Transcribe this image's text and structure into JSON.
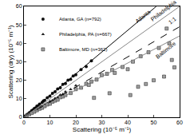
{
  "chart_data": {
    "type": "scatter",
    "x_label": "Scattering (10⁻⁵ m⁻¹)",
    "y_label": "Scattering (dry) (10⁻⁵ m⁻¹)",
    "xlim": [
      0,
      60
    ],
    "ylim": [
      0,
      60
    ],
    "xticks": [
      0,
      10,
      20,
      30,
      40,
      50,
      60
    ],
    "yticks": [
      0,
      10,
      20,
      30,
      40,
      50,
      60
    ],
    "grid": false,
    "legend": "top-left",
    "series": [
      {
        "name": "Atlanta, GA (n=792)",
        "type": "scatter",
        "marker": "circle",
        "color": "#111111",
        "x": [
          0.5,
          1,
          1.5,
          2,
          2.5,
          3,
          3.5,
          4,
          4.5,
          5,
          5.5,
          6,
          7,
          7.5,
          8,
          9,
          10,
          11,
          12,
          13,
          14,
          15,
          16,
          17,
          18,
          19,
          20,
          22,
          24,
          26
        ],
        "values": [
          0.6,
          1.2,
          1.7,
          2.4,
          2.8,
          3.6,
          4.0,
          4.8,
          5.1,
          6.0,
          6.2,
          7.1,
          8.0,
          8.9,
          9.2,
          10.6,
          11.4,
          12.9,
          13.8,
          15.3,
          16.0,
          17.8,
          18.2,
          20.1,
          20.5,
          22.3,
          23.0,
          25.8,
          27.4,
          30.5
        ]
      },
      {
        "name": "Philadelphia, PA (n=667)",
        "type": "scatter",
        "marker": "triangle",
        "color": "#222222",
        "x": [
          0.5,
          1,
          1.5,
          2,
          3,
          3.5,
          4,
          5,
          6,
          6.5,
          7,
          8,
          9,
          10,
          11,
          12,
          13,
          14,
          15,
          16,
          18,
          20
        ],
        "values": [
          0.4,
          0.9,
          1.3,
          1.6,
          2.6,
          2.9,
          3.4,
          4.3,
          5.0,
          5.6,
          5.9,
          6.8,
          7.6,
          8.6,
          9.2,
          10.3,
          10.8,
          12.1,
          12.5,
          13.8,
          15.1,
          17.2
        ]
      },
      {
        "name": "Baltimore, MD (n=362)",
        "type": "scatter",
        "marker": "square",
        "color": "#a0a0a0",
        "x": [
          1,
          2,
          3,
          4,
          5,
          6,
          7,
          8,
          9,
          10,
          11,
          12,
          13,
          14,
          15,
          16,
          18,
          20,
          22,
          24,
          25,
          26,
          28,
          30,
          32,
          34,
          35,
          38,
          40,
          42,
          44,
          45,
          48,
          50,
          52,
          55,
          56,
          58,
          27,
          33,
          41,
          47,
          54,
          57
        ],
        "values": [
          0.8,
          1.6,
          2.3,
          3.0,
          3.8,
          4.6,
          5.1,
          6.0,
          6.9,
          7.3,
          8.4,
          9.0,
          9.5,
          10.8,
          11.2,
          12.0,
          13.1,
          15.2,
          16.0,
          18.1,
          17.5,
          19.3,
          20.4,
          22.8,
          23.5,
          25.6,
          24.0,
          27.2,
          26.0,
          30.1,
          16.5,
          33.0,
          35.2,
          20.0,
          37.5,
          48.0,
          40.0,
          27.0,
          10.5,
          13.0,
          12.0,
          18.0,
          22.0,
          31.0
        ]
      },
      {
        "name": "Atlanta",
        "type": "line",
        "line_style": "solid",
        "color": "#000000",
        "x": [
          0,
          51
        ],
        "values": [
          0,
          60
        ]
      },
      {
        "name": "1:1",
        "type": "line",
        "line_style": "solid",
        "color": "#888888",
        "x": [
          0,
          60
        ],
        "values": [
          0,
          60
        ]
      },
      {
        "name": "Philadelphia",
        "type": "line",
        "line_style": "dashed",
        "color": "#000000",
        "x": [
          0,
          60
        ],
        "values": [
          0,
          49
        ]
      },
      {
        "name": "Baltimore",
        "type": "line",
        "line_style": "solid",
        "color": "#888888",
        "x": [
          0,
          60
        ],
        "values": [
          0,
          44
        ]
      }
    ]
  }
}
